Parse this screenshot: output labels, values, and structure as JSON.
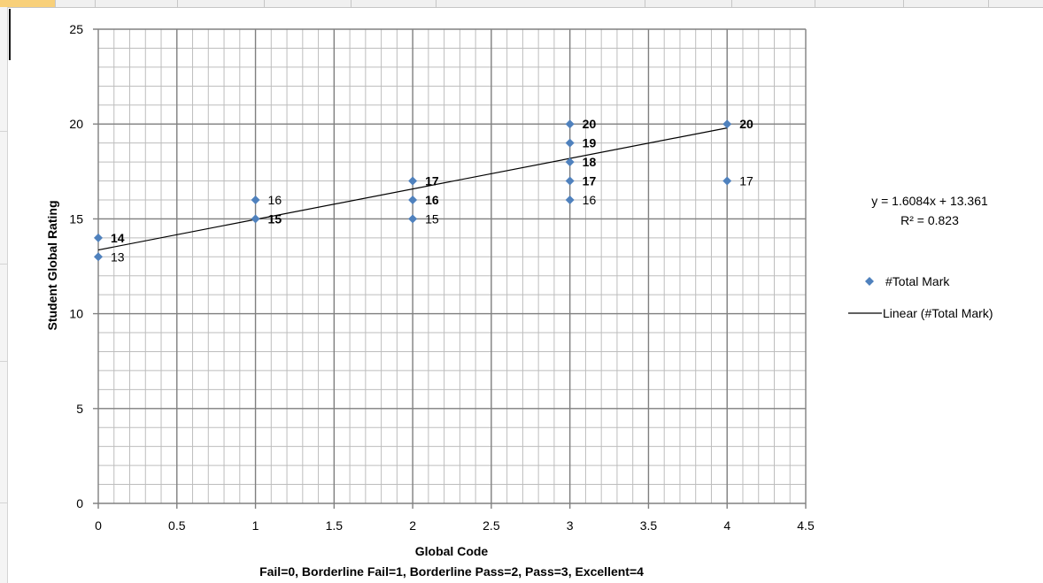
{
  "chart_data": {
    "type": "scatter",
    "xlabel": "Global Code",
    "xlabel_sub": "Fail=0, Borderline Fail=1, Borderline Pass=2, Pass=3,  Excellent=4",
    "ylabel": "Student Global Rating",
    "xlim": [
      0,
      4.5
    ],
    "ylim": [
      0,
      25
    ],
    "x_ticks": [
      "0",
      "0.5",
      "1",
      "1.5",
      "2",
      "2.5",
      "3",
      "3.5",
      "4",
      "4.5"
    ],
    "y_ticks": [
      "0",
      "5",
      "10",
      "15",
      "20",
      "25"
    ],
    "grid": true,
    "series": [
      {
        "name": "#Total Mark",
        "color": "#4f81bd",
        "marker": "diamond",
        "points": [
          {
            "x": 0,
            "y": 14,
            "label": "14",
            "bold": true
          },
          {
            "x": 0,
            "y": 13,
            "label": "13",
            "bold": false
          },
          {
            "x": 1,
            "y": 16,
            "label": "16",
            "bold": false
          },
          {
            "x": 1,
            "y": 15,
            "label": "15",
            "bold": true
          },
          {
            "x": 2,
            "y": 17,
            "label": "17",
            "bold": true
          },
          {
            "x": 2,
            "y": 16,
            "label": "16",
            "bold": true
          },
          {
            "x": 2,
            "y": 15,
            "label": "15",
            "bold": false
          },
          {
            "x": 3,
            "y": 20,
            "label": "20",
            "bold": true
          },
          {
            "x": 3,
            "y": 19,
            "label": "19",
            "bold": true
          },
          {
            "x": 3,
            "y": 18,
            "label": "18",
            "bold": true
          },
          {
            "x": 3,
            "y": 17,
            "label": "17",
            "bold": true
          },
          {
            "x": 3,
            "y": 16,
            "label": "16",
            "bold": false
          },
          {
            "x": 4,
            "y": 20,
            "label": "20",
            "bold": true
          },
          {
            "x": 4,
            "y": 17,
            "label": "17",
            "bold": false
          }
        ]
      }
    ],
    "trendline": {
      "name": "Linear (#Total Mark)",
      "slope": 1.6084,
      "intercept": 13.361,
      "x_range": [
        0,
        4
      ],
      "color": "#000000",
      "equation": "y = 1.6084x + 13.361",
      "r2": "R² = 0.823"
    },
    "legend": {
      "position": "right",
      "items": [
        "#Total Mark",
        "Linear (#Total Mark)"
      ]
    }
  }
}
